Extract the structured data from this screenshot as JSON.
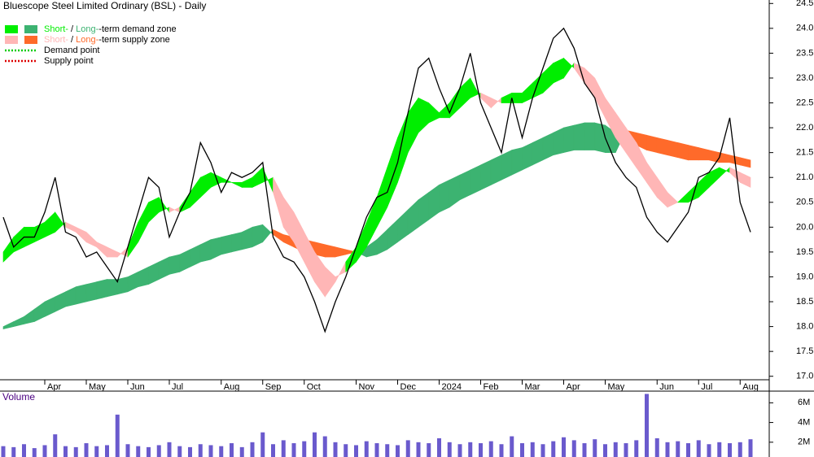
{
  "chart_data": {
    "type": "line",
    "title": "Bluescope Steel Limited Ordinary (BSL) - Daily",
    "legend": {
      "demand": [
        "Short-",
        " / ",
        "Long-",
        "-term demand zone"
      ],
      "supply": [
        "Short-",
        " / ",
        "Long-",
        "-term supply zone"
      ],
      "demand_point": "Demand point",
      "supply_point": "Supply point",
      "demand_point_color": "#00cc00",
      "supply_point_color": "#dd0000"
    },
    "categories": [
      null,
      null,
      null,
      null,
      "Apr",
      null,
      null,
      null,
      "May",
      null,
      null,
      null,
      "Jun",
      null,
      null,
      null,
      "Jul",
      null,
      null,
      null,
      null,
      "Aug",
      null,
      null,
      null,
      "Sep",
      null,
      null,
      null,
      "Oct",
      null,
      null,
      null,
      null,
      "Nov",
      null,
      null,
      null,
      "Dec",
      null,
      null,
      null,
      "2024",
      null,
      null,
      null,
      "Feb",
      null,
      null,
      null,
      "Mar",
      null,
      null,
      null,
      "Apr",
      null,
      null,
      null,
      "May",
      null,
      null,
      null,
      null,
      "Jun",
      null,
      null,
      null,
      "Jul",
      null,
      null,
      null,
      "Aug",
      null
    ],
    "series": [
      {
        "color": "#000000",
        "values": [
          20.2,
          19.6,
          19.8,
          19.8,
          20.3,
          21.0,
          19.9,
          19.8,
          19.4,
          19.5,
          19.2,
          18.9,
          19.6,
          20.3,
          21.0,
          20.8,
          19.8,
          20.3,
          20.7,
          21.7,
          21.3,
          20.7,
          21.1,
          21.0,
          21.1,
          21.3,
          19.8,
          19.4,
          19.3,
          19.0,
          18.5,
          17.9,
          18.5,
          19.0,
          19.6,
          20.2,
          20.6,
          20.7,
          21.3,
          22.3,
          23.2,
          23.4,
          22.8,
          22.3,
          22.8,
          23.5,
          22.5,
          22.0,
          21.5,
          22.6,
          21.8,
          22.6,
          23.2,
          23.8,
          24.0,
          23.6,
          22.9,
          22.6,
          21.8,
          21.3,
          21.0,
          20.8,
          20.2,
          19.9,
          19.7,
          20.0,
          20.3,
          21.0,
          21.1,
          21.4,
          22.2,
          20.5,
          19.9
        ]
      }
    ],
    "bands": [
      {
        "demand_color": "#3cb371",
        "supply_color": "#ff6a2a",
        "a": [
          18.0,
          18.1,
          18.2,
          18.35,
          18.5,
          18.6,
          18.7,
          18.8,
          18.85,
          18.9,
          18.95,
          18.95,
          19.0,
          19.1,
          19.2,
          19.3,
          19.4,
          19.45,
          19.55,
          19.65,
          19.75,
          19.8,
          19.85,
          19.9,
          20.0,
          20.05,
          19.85,
          19.7,
          19.6,
          19.5,
          19.45,
          19.4,
          19.4,
          19.45,
          19.5,
          19.6,
          19.75,
          19.95,
          20.15,
          20.35,
          20.55,
          20.7,
          20.85,
          20.95,
          21.05,
          21.15,
          21.25,
          21.35,
          21.45,
          21.55,
          21.6,
          21.7,
          21.8,
          21.9,
          22.0,
          22.05,
          22.1,
          22.1,
          22.05,
          21.9,
          21.75,
          21.65,
          21.55,
          21.5,
          21.45,
          21.4,
          21.35,
          21.35,
          21.35,
          21.3,
          21.3,
          21.25,
          21.2
        ],
        "b": [
          17.95,
          18.0,
          18.05,
          18.1,
          18.2,
          18.3,
          18.4,
          18.45,
          18.5,
          18.55,
          18.6,
          18.65,
          18.7,
          18.8,
          18.85,
          18.95,
          19.05,
          19.1,
          19.2,
          19.3,
          19.35,
          19.45,
          19.5,
          19.55,
          19.6,
          19.7,
          19.95,
          19.85,
          19.8,
          19.75,
          19.7,
          19.65,
          19.6,
          19.55,
          19.5,
          19.4,
          19.45,
          19.55,
          19.7,
          19.85,
          20.0,
          20.15,
          20.3,
          20.4,
          20.55,
          20.65,
          20.75,
          20.85,
          20.95,
          21.05,
          21.15,
          21.25,
          21.35,
          21.45,
          21.5,
          21.55,
          21.55,
          21.55,
          21.5,
          21.5,
          21.95,
          21.9,
          21.85,
          21.8,
          21.75,
          21.7,
          21.65,
          21.6,
          21.55,
          21.5,
          21.45,
          21.4,
          21.35
        ]
      },
      {
        "demand_color": "#00ee00",
        "supply_color": "#ffb6b6",
        "a": [
          19.5,
          19.8,
          20.0,
          20.0,
          20.1,
          20.3,
          20.0,
          19.9,
          19.7,
          19.6,
          19.4,
          19.4,
          19.6,
          20.1,
          20.5,
          20.6,
          20.3,
          20.4,
          20.7,
          21.0,
          21.1,
          21.0,
          20.9,
          20.9,
          21.0,
          21.2,
          20.7,
          20.0,
          19.7,
          19.3,
          18.9,
          18.6,
          18.9,
          19.3,
          19.6,
          20.1,
          20.6,
          21.2,
          21.8,
          22.3,
          22.6,
          22.5,
          22.3,
          22.5,
          22.8,
          23.0,
          22.6,
          22.4,
          22.6,
          22.7,
          22.7,
          22.9,
          23.1,
          23.3,
          23.4,
          23.2,
          22.9,
          22.6,
          22.2,
          21.8,
          21.5,
          21.2,
          20.9,
          20.6,
          20.4,
          20.5,
          20.7,
          20.9,
          21.1,
          21.2,
          21.1,
          20.9,
          20.8
        ],
        "b": [
          19.3,
          19.5,
          19.6,
          19.7,
          19.8,
          19.9,
          20.1,
          20.0,
          19.9,
          19.7,
          19.6,
          19.5,
          19.4,
          19.7,
          20.1,
          20.3,
          20.4,
          20.3,
          20.4,
          20.6,
          20.8,
          20.9,
          20.9,
          20.8,
          20.8,
          20.9,
          21.0,
          20.6,
          20.3,
          19.9,
          19.5,
          19.2,
          19.0,
          19.1,
          19.3,
          19.6,
          20.0,
          20.4,
          20.9,
          21.5,
          21.9,
          22.1,
          22.2,
          22.2,
          22.4,
          22.6,
          22.7,
          22.6,
          22.5,
          22.5,
          22.5,
          22.6,
          22.7,
          22.9,
          23.0,
          23.3,
          23.2,
          23.0,
          22.6,
          22.3,
          22.0,
          21.7,
          21.3,
          21.0,
          20.7,
          20.5,
          20.5,
          20.6,
          20.8,
          21.0,
          21.2,
          21.1,
          21.0
        ]
      }
    ],
    "ylim": [
      16.93,
      24.57
    ],
    "yticks": [
      {
        "value": 17,
        "label": "17.0"
      },
      17.5,
      {
        "value": 18,
        "label": "18.0"
      },
      18.5,
      {
        "value": 19,
        "label": "19.0"
      },
      19.5,
      {
        "value": 20,
        "label": "20.0"
      },
      20.5,
      {
        "value": 21,
        "label": "21.0"
      },
      21.5,
      {
        "value": 22,
        "label": "22.0"
      },
      22.5,
      {
        "value": 23,
        "label": "23.0"
      },
      23.5,
      {
        "value": 24,
        "label": "24.0"
      },
      24.5
    ],
    "volume": {
      "label": "Volume",
      "color": "#6a5acd",
      "ylim": [
        0.5,
        7.1
      ],
      "yticks": [
        {
          "value": 2,
          "label": "2M"
        },
        {
          "value": 4,
          "label": "4M"
        },
        {
          "value": 6,
          "label": "6M"
        }
      ],
      "values": [
        1.6,
        1.5,
        1.8,
        1.4,
        1.7,
        2.8,
        1.6,
        1.5,
        1.9,
        1.6,
        1.7,
        4.8,
        1.8,
        1.6,
        1.5,
        1.7,
        2.0,
        1.6,
        1.5,
        1.8,
        1.7,
        1.6,
        1.9,
        1.5,
        2.0,
        3.0,
        1.8,
        2.2,
        1.9,
        2.1,
        3.0,
        2.6,
        2.0,
        1.8,
        1.7,
        2.1,
        1.9,
        1.8,
        1.7,
        2.2,
        2.0,
        1.9,
        2.4,
        2.0,
        1.8,
        2.0,
        1.9,
        2.1,
        1.8,
        2.6,
        1.9,
        2.0,
        1.8,
        2.1,
        2.5,
        2.2,
        1.9,
        2.3,
        1.8,
        2.0,
        1.9,
        2.2,
        6.9,
        2.4,
        2.0,
        2.1,
        1.9,
        2.2,
        1.8,
        2.0,
        1.9,
        2.0,
        2.3
      ]
    }
  }
}
